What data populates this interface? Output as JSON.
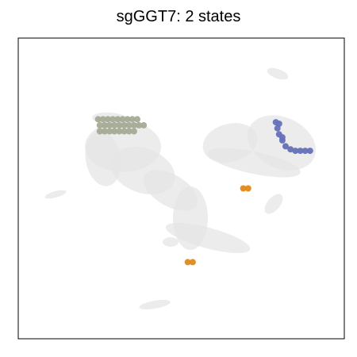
{
  "chart_data": {
    "type": "scatter",
    "title": "sgGGT7: 2 states",
    "xlabel": "",
    "ylabel": "",
    "axis_ticks": "none",
    "grid": false,
    "legend": "none",
    "background_color": "#e6e6e6",
    "series": [
      {
        "color": "#a5ab97",
        "points": [
          [
            0.245,
            0.73
          ],
          [
            0.26,
            0.73
          ],
          [
            0.275,
            0.73
          ],
          [
            0.29,
            0.73
          ],
          [
            0.305,
            0.73
          ],
          [
            0.32,
            0.73
          ],
          [
            0.335,
            0.73
          ],
          [
            0.35,
            0.73
          ],
          [
            0.365,
            0.73
          ],
          [
            0.25,
            0.71
          ],
          [
            0.265,
            0.71
          ],
          [
            0.28,
            0.71
          ],
          [
            0.295,
            0.71
          ],
          [
            0.31,
            0.71
          ],
          [
            0.325,
            0.71
          ],
          [
            0.34,
            0.71
          ],
          [
            0.355,
            0.71
          ],
          [
            0.37,
            0.71
          ],
          [
            0.385,
            0.71
          ],
          [
            0.25,
            0.69
          ],
          [
            0.265,
            0.69
          ],
          [
            0.28,
            0.69
          ],
          [
            0.295,
            0.69
          ],
          [
            0.31,
            0.69
          ],
          [
            0.325,
            0.69
          ],
          [
            0.34,
            0.69
          ],
          [
            0.355,
            0.69
          ]
        ]
      },
      {
        "color": "#6571b8",
        "points": [
          [
            0.79,
            0.72
          ],
          [
            0.795,
            0.7
          ],
          [
            0.8,
            0.68
          ],
          [
            0.81,
            0.66
          ],
          [
            0.82,
            0.64
          ],
          [
            0.835,
            0.63
          ],
          [
            0.85,
            0.625
          ],
          [
            0.865,
            0.625
          ],
          [
            0.88,
            0.625
          ],
          [
            0.895,
            0.625
          ],
          [
            0.8,
            0.715
          ],
          [
            0.81,
            0.67
          ]
        ]
      },
      {
        "color": "#e08a1a",
        "points": [
          [
            0.69,
            0.5
          ],
          [
            0.705,
            0.5
          ],
          [
            0.52,
            0.255
          ],
          [
            0.535,
            0.255
          ]
        ]
      }
    ]
  }
}
